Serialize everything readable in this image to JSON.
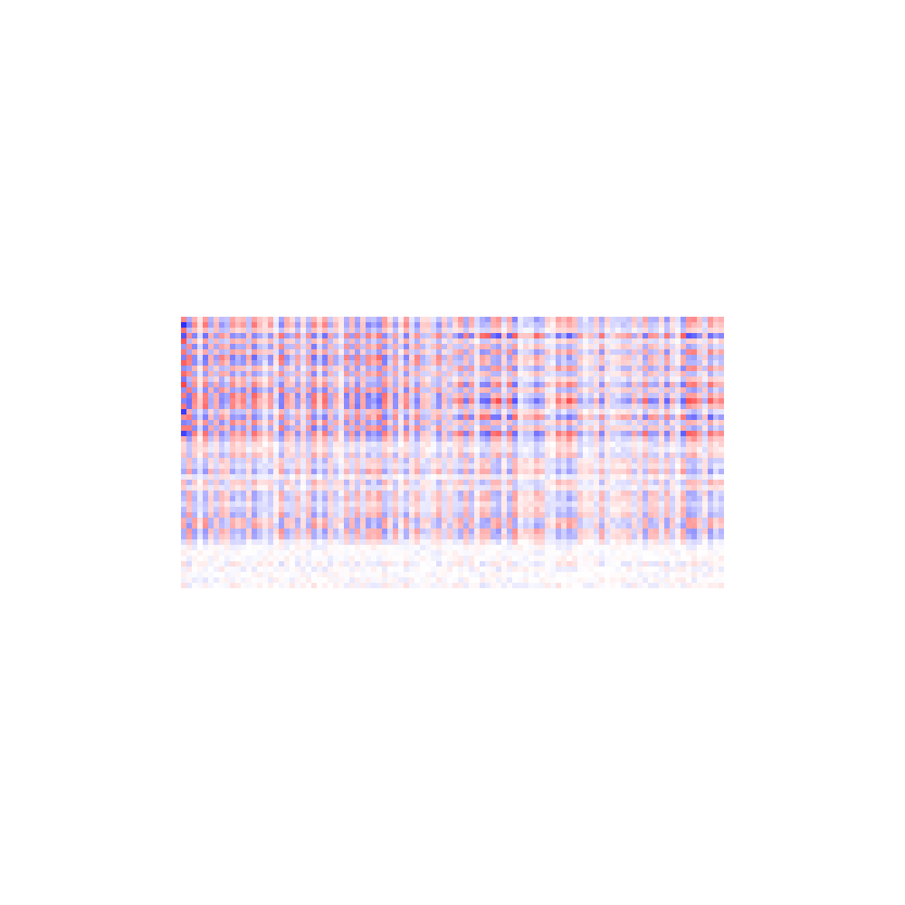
{
  "chart_data": {
    "type": "heatmap",
    "title": "",
    "xlabel": "",
    "ylabel": "",
    "grid": false,
    "axes_visible": false,
    "colorbar": false,
    "colormap": "bwr",
    "colors": {
      "negative": "#0000ff",
      "zero": "#ffffff",
      "positive": "#ff0000",
      "background": "#ffffff"
    },
    "value_range": [
      -1,
      1
    ],
    "n_rows": 50,
    "n_cols": 100,
    "blocks": [
      {
        "name": "top-left",
        "rows": [
          0,
          22
        ],
        "cols": [
          0,
          49
        ]
      },
      {
        "name": "top-right",
        "rows": [
          0,
          22
        ],
        "cols": [
          50,
          99
        ]
      },
      {
        "name": "bottom-left",
        "rows": [
          22,
          50
        ],
        "cols": [
          0,
          49
        ]
      },
      {
        "name": "bottom-right",
        "rows": [
          22,
          50
        ],
        "cols": [
          50,
          99
        ]
      }
    ],
    "column_sign_seed": 7,
    "row_strength_seed": 13,
    "notes_visible": []
  }
}
